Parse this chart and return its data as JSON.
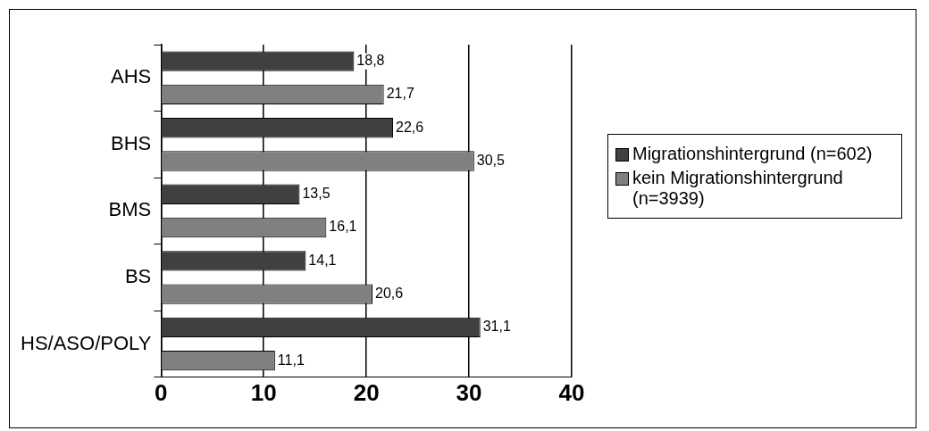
{
  "chart_data": {
    "type": "bar",
    "orientation": "horizontal",
    "categories": [
      "AHS",
      "BHS",
      "BMS",
      "BS",
      "HS/ASO/POLY"
    ],
    "series": [
      {
        "name": "Migrationshintergrund (n=602)",
        "color": "#404040",
        "values": [
          18.8,
          22.6,
          13.5,
          14.1,
          31.1
        ],
        "value_labels": [
          "18,8",
          "22,6",
          "13,5",
          "14,1",
          "31,1"
        ]
      },
      {
        "name": "kein Migrationshintergrund (n=3939)",
        "color": "#808080",
        "values": [
          21.7,
          30.5,
          16.1,
          20.6,
          11.1
        ],
        "value_labels": [
          "21,7",
          "30,5",
          "16,1",
          "20,6",
          "11,1"
        ]
      }
    ],
    "xlim": [
      0,
      40
    ],
    "xticks": [
      0,
      10,
      20,
      30,
      40
    ],
    "grid": "x",
    "legend": "right"
  }
}
